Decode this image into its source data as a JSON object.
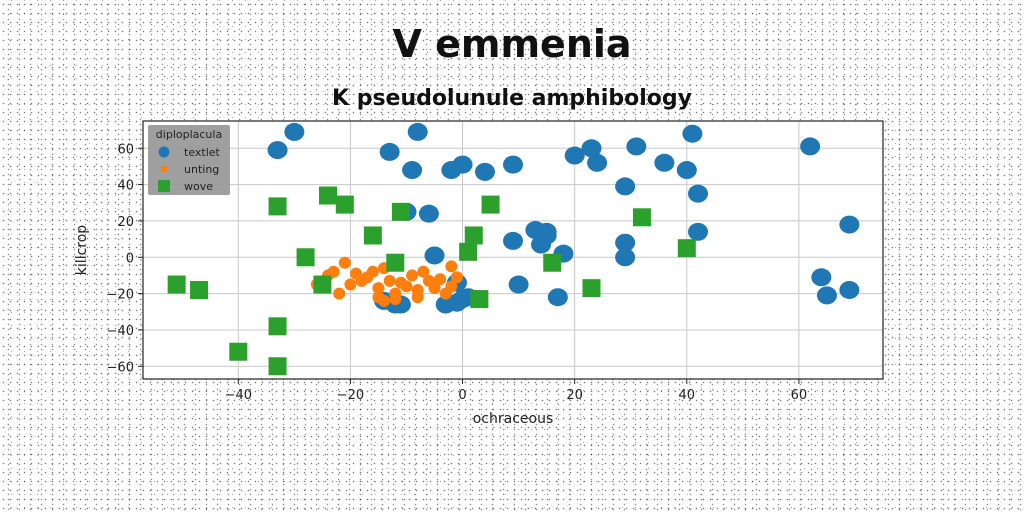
{
  "chart_data": {
    "type": "scatter",
    "title": "V emmenia",
    "subtitle": "K pseudolunule amphibology",
    "xlabel": "ochraceous",
    "ylabel": "killcrop",
    "xlim": [
      -57,
      75
    ],
    "ylim": [
      -67,
      75
    ],
    "xticks": [
      -40,
      -20,
      0,
      20,
      40,
      60
    ],
    "yticks": [
      -60,
      -40,
      -20,
      0,
      20,
      40,
      60
    ],
    "xtick_labels": [
      "−40",
      "−20",
      "0",
      "20",
      "40",
      "60"
    ],
    "ytick_labels": [
      "−60",
      "−40",
      "−20",
      "0",
      "20",
      "40",
      "60"
    ],
    "grid": true,
    "legend": {
      "title": "diploplacula",
      "position": "top-left"
    },
    "series": [
      {
        "name": "textlet",
        "marker": "circle",
        "color": "#1f77b4",
        "x": [
          -30,
          -33,
          -13,
          -9,
          -10,
          -8,
          -2,
          0,
          4,
          9,
          9,
          10,
          13,
          14,
          15,
          17,
          15,
          18,
          20,
          23,
          24,
          29,
          29,
          29,
          31,
          36,
          40,
          41,
          42,
          42,
          62,
          64,
          65,
          69,
          69,
          -6,
          -5,
          -3,
          -1,
          -1,
          0,
          1,
          -12,
          -14,
          -12,
          -11
        ],
        "y": [
          69,
          59,
          58,
          48,
          25,
          69,
          48,
          51,
          47,
          51,
          9,
          -15,
          15,
          7,
          12,
          -22,
          14,
          2,
          56,
          60,
          52,
          39,
          8,
          0,
          61,
          52,
          48,
          68,
          35,
          14,
          61,
          -11,
          -21,
          -18,
          18,
          24,
          1,
          -26,
          -25,
          -14,
          -23,
          -22,
          -25,
          -24,
          -26,
          -26
        ]
      },
      {
        "name": "unting",
        "marker": "circle",
        "color": "#ff7f0e",
        "x": [
          -23,
          -21,
          -20,
          -19,
          -18,
          -17,
          -16,
          -15,
          -15,
          -14,
          -13,
          -12,
          -12,
          -11,
          -10,
          -9,
          -8,
          -8,
          -7,
          -6,
          -5,
          -4,
          -3,
          -2,
          -2,
          -1,
          -26,
          -24,
          -22,
          -14
        ],
        "y": [
          -8,
          -3,
          -15,
          -9,
          -13,
          -11,
          -8,
          -22,
          -17,
          -24,
          -13,
          -20,
          -23,
          -14,
          -16,
          -10,
          -18,
          -22,
          -8,
          -13,
          -17,
          -12,
          -20,
          -16,
          -5,
          -11,
          -15,
          -10,
          -20,
          -6
        ],
        "size": 1
      },
      {
        "name": "wove",
        "marker": "square",
        "color": "#2ca02c",
        "x": [
          -51,
          -47,
          -40,
          -33,
          -33,
          -33,
          -28,
          -25,
          -24,
          -21,
          -16,
          -12,
          -11,
          1,
          2,
          3,
          5,
          16,
          23,
          32,
          40
        ],
        "y": [
          -15,
          -18,
          -52,
          -38,
          -60,
          28,
          0,
          -15,
          34,
          29,
          12,
          -3,
          25,
          3,
          12,
          -23,
          29,
          -3,
          -17,
          22,
          5
        ]
      }
    ]
  }
}
